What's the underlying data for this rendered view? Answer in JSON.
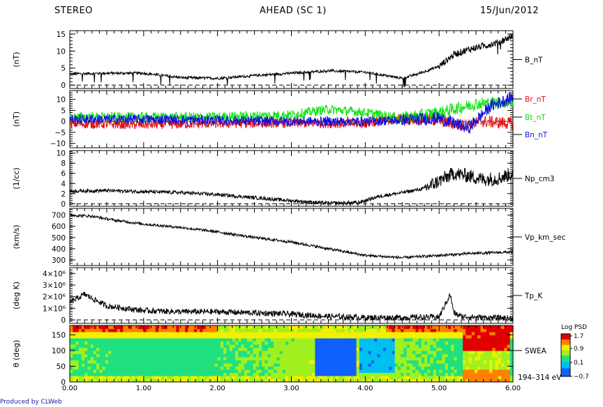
{
  "header": {
    "left": "STEREO",
    "center": "AHEAD (SC 1)",
    "right": "15/Jun/2012"
  },
  "footer": "Produced by CLWeb",
  "colors": {
    "Br": "#e01010",
    "Bt": "#10e010",
    "Bn": "#1010e0",
    "trace": "#000000"
  },
  "chart_data": [
    {
      "type": "line",
      "ylabel": "(nT)",
      "ylim": [
        -1,
        16
      ],
      "yticks": [
        "0",
        "5",
        "10",
        "15"
      ],
      "yticks_values": [
        0,
        5,
        10,
        15
      ],
      "series": [
        {
          "name": "B_nT",
          "x": [
            0,
            0.5,
            1.0,
            1.5,
            2.0,
            2.5,
            3.0,
            3.5,
            4.0,
            4.5,
            4.7,
            5.0,
            5.2,
            5.4,
            5.6,
            5.8,
            6.0
          ],
          "values": [
            3.3,
            3.5,
            3.5,
            2.2,
            2.0,
            2.8,
            3.5,
            4.2,
            3.8,
            2.0,
            3.2,
            5.5,
            9.0,
            10.5,
            11.5,
            12.5,
            14.5
          ]
        }
      ],
      "dashed_zero": true
    },
    {
      "type": "line",
      "ylabel": "(nT)",
      "ylim": [
        -12,
        14
      ],
      "yticks": [
        "−10",
        "−5",
        "0",
        "5",
        "10"
      ],
      "yticks_values": [
        -10,
        -5,
        0,
        5,
        10
      ],
      "series": [
        {
          "name": "Br_nT",
          "x": [
            0,
            1,
            2,
            3,
            4,
            4.5,
            5.0,
            5.3,
            5.6,
            6.0
          ],
          "values": [
            -1.0,
            -1.5,
            -1.0,
            -0.8,
            -1.0,
            1.5,
            0.5,
            -2.0,
            0.0,
            -1.0
          ]
        },
        {
          "name": "Bt_nT",
          "x": [
            0,
            1,
            2,
            3,
            3.5,
            4,
            4.5,
            5.0,
            5.5,
            6.0
          ],
          "values": [
            2.0,
            2.0,
            2.0,
            3.0,
            5.5,
            4.0,
            1.5,
            4.0,
            8.0,
            9.0
          ]
        },
        {
          "name": "Bn_nT",
          "x": [
            0,
            1,
            2,
            3,
            4,
            4.5,
            5.0,
            5.4,
            5.7,
            6.0
          ],
          "values": [
            1.0,
            1.0,
            0.5,
            0.0,
            0.0,
            0.5,
            1.5,
            -3.0,
            7.0,
            11.0
          ]
        }
      ],
      "dashed_zero": true
    },
    {
      "type": "line",
      "ylabel": "(1/cc)",
      "ylim": [
        -0.5,
        10.5
      ],
      "yticks": [
        "0",
        "2",
        "4",
        "6",
        "8",
        "10"
      ],
      "yticks_values": [
        0,
        2,
        4,
        6,
        8,
        10
      ],
      "series": [
        {
          "name": "Np_cm3",
          "x": [
            0,
            0.5,
            1.0,
            1.5,
            2.0,
            2.5,
            3.0,
            3.5,
            3.9,
            4.2,
            4.5,
            4.8,
            5.0,
            5.2,
            5.4,
            5.6,
            5.8,
            6.0
          ],
          "values": [
            2.5,
            2.6,
            2.4,
            2.2,
            1.8,
            1.2,
            0.6,
            0.1,
            0.2,
            1.5,
            2.2,
            3.0,
            4.5,
            6.0,
            5.5,
            4.8,
            5.0,
            6.0
          ]
        }
      ],
      "dashed_zero": true
    },
    {
      "type": "line",
      "ylabel": "(km/s)",
      "ylim": [
        250,
        760
      ],
      "yticks": [
        "300",
        "400",
        "500",
        "600",
        "700"
      ],
      "yticks_values": [
        300,
        400,
        500,
        600,
        700
      ],
      "series": [
        {
          "name": "Vp_km_sec",
          "x": [
            0,
            0.3,
            0.6,
            1.0,
            1.5,
            2.0,
            2.5,
            3.0,
            3.5,
            4.0,
            4.5,
            5.0,
            5.5,
            6.0
          ],
          "values": [
            700,
            690,
            655,
            620,
            590,
            550,
            500,
            460,
            400,
            340,
            320,
            340,
            360,
            370
          ]
        }
      ]
    },
    {
      "type": "line",
      "ylabel": "(deg K)",
      "ylim": [
        -300000,
        4500000
      ],
      "yticks": [
        "0",
        "1×10⁶",
        "2×10⁶",
        "3×10⁶",
        "4×10⁶"
      ],
      "yticks_values": [
        0,
        1000000,
        2000000,
        3000000,
        4000000
      ],
      "series": [
        {
          "name": "Tp_K",
          "x": [
            0,
            0.2,
            0.5,
            1.0,
            1.5,
            2.0,
            2.5,
            3.0,
            3.5,
            4.0,
            4.5,
            5.0,
            5.15,
            5.2,
            5.3,
            5.6,
            6.0
          ],
          "values": [
            1500000,
            2200000,
            1200000,
            800000,
            700000,
            700000,
            600000,
            500000,
            300000,
            200000,
            200000,
            250000,
            2200000,
            600000,
            300000,
            200000,
            150000
          ]
        }
      ],
      "dashed_zero": true
    },
    {
      "type": "heatmap",
      "ylabel": "θ (deg)",
      "ylim": [
        0,
        180
      ],
      "yticks": [
        "0",
        "50",
        "100",
        "150"
      ],
      "yticks_values": [
        0,
        50,
        100,
        150
      ],
      "series": [
        {
          "name": "SWEA"
        }
      ],
      "channel_label": "194–314 eV",
      "colorbar": {
        "title": "Log PSD",
        "ticks": [
          "1.7",
          "0.9",
          "0.1",
          "−0.7"
        ],
        "range": [
          -0.7,
          1.7
        ]
      }
    }
  ],
  "xaxis": {
    "ticks": [
      "0.00",
      "1.00",
      "2.00",
      "3.00",
      "4.00",
      "5.00",
      "6.00"
    ],
    "range": [
      0,
      6
    ]
  }
}
